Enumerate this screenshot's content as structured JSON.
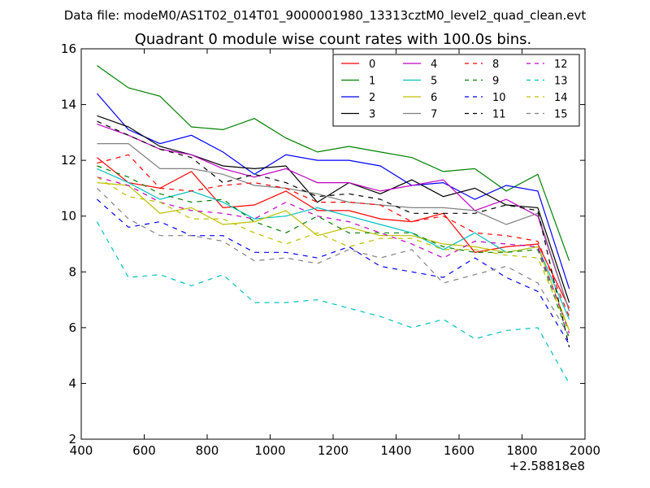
{
  "suptitle": "Data file: modeM0/AS1T02_014T01_9000001980_13313cztM0_level2_quad_clean.evt",
  "chart_data": {
    "type": "line",
    "title": "Quadrant 0 module wise count rates with 100.0s bins.",
    "xlabel": "",
    "ylabel": "",
    "x_offset_label": "+2.58818e8",
    "xlim": [
      400,
      2000
    ],
    "ylim": [
      2,
      16
    ],
    "xticks": [
      400,
      600,
      800,
      1000,
      1200,
      1400,
      1600,
      1800,
      2000
    ],
    "yticks": [
      2,
      4,
      6,
      8,
      10,
      12,
      14,
      16
    ],
    "grid": false,
    "legend_position": "top-right",
    "legend_columns": 4,
    "x": [
      450,
      550,
      650,
      750,
      850,
      950,
      1050,
      1150,
      1250,
      1350,
      1450,
      1550,
      1650,
      1750,
      1850,
      1950
    ],
    "series": [
      {
        "name": "0",
        "color": "#ff0000",
        "dashed": false,
        "values": [
          12.1,
          11.2,
          11.0,
          11.6,
          10.3,
          10.4,
          10.9,
          10.2,
          10.2,
          9.9,
          9.8,
          10.1,
          8.7,
          8.9,
          9.0,
          6.7
        ]
      },
      {
        "name": "1",
        "color": "#008000",
        "dashed": false,
        "values": [
          15.4,
          14.6,
          14.3,
          13.2,
          13.1,
          13.5,
          12.8,
          12.3,
          12.5,
          12.3,
          12.1,
          11.6,
          11.7,
          10.9,
          11.5,
          8.4
        ]
      },
      {
        "name": "2",
        "color": "#0000ff",
        "dashed": false,
        "values": [
          14.4,
          13.1,
          12.6,
          12.9,
          12.3,
          11.5,
          12.2,
          12.0,
          12.0,
          11.8,
          11.1,
          11.2,
          10.6,
          11.1,
          10.9,
          7.4
        ]
      },
      {
        "name": "3",
        "color": "#000000",
        "dashed": false,
        "values": [
          13.6,
          13.2,
          12.5,
          12.2,
          11.8,
          11.7,
          11.8,
          10.5,
          11.2,
          10.8,
          11.3,
          10.7,
          11.0,
          10.4,
          10.3,
          6.9
        ]
      },
      {
        "name": "4",
        "color": "#bf00bf",
        "dashed": false,
        "values": [
          13.3,
          12.9,
          12.4,
          12.2,
          11.7,
          11.4,
          11.7,
          11.2,
          11.2,
          10.9,
          11.1,
          11.3,
          10.2,
          10.6,
          10.0,
          6.6
        ]
      },
      {
        "name": "5",
        "color": "#00bfbf",
        "dashed": false,
        "values": [
          11.7,
          11.2,
          10.6,
          10.9,
          10.5,
          9.9,
          10.0,
          10.3,
          10.0,
          9.7,
          9.4,
          8.8,
          9.4,
          8.7,
          8.9,
          6.3
        ]
      },
      {
        "name": "6",
        "color": "#bfbf00",
        "dashed": false,
        "values": [
          11.2,
          11.1,
          10.1,
          10.3,
          9.7,
          9.8,
          10.2,
          9.3,
          9.6,
          9.3,
          9.3,
          9.0,
          8.9,
          8.7,
          8.9,
          5.9
        ]
      },
      {
        "name": "7",
        "color": "#808080",
        "dashed": false,
        "values": [
          12.6,
          12.6,
          11.7,
          11.7,
          11.5,
          11.1,
          11.0,
          10.8,
          10.5,
          10.4,
          10.3,
          10.3,
          10.2,
          9.7,
          10.1,
          6.6
        ]
      },
      {
        "name": "8",
        "color": "#ff0000",
        "dashed": true,
        "values": [
          11.9,
          12.2,
          11.0,
          10.9,
          11.1,
          11.2,
          11.0,
          10.5,
          10.5,
          10.4,
          9.8,
          10.0,
          9.4,
          9.3,
          9.1,
          6.4
        ]
      },
      {
        "name": "9",
        "color": "#008000",
        "dashed": true,
        "values": [
          11.8,
          11.4,
          10.8,
          10.5,
          10.6,
          9.8,
          9.4,
          10.0,
          9.4,
          9.4,
          9.4,
          8.9,
          8.7,
          8.7,
          8.8,
          5.6
        ]
      },
      {
        "name": "10",
        "color": "#0000ff",
        "dashed": true,
        "values": [
          10.6,
          9.6,
          9.8,
          9.3,
          9.3,
          8.7,
          8.7,
          8.5,
          8.9,
          8.2,
          8.0,
          7.8,
          8.5,
          7.8,
          7.3,
          5.4
        ]
      },
      {
        "name": "11",
        "color": "#000000",
        "dashed": true,
        "values": [
          13.4,
          12.9,
          12.4,
          12.1,
          11.2,
          11.5,
          11.2,
          10.7,
          10.8,
          10.6,
          10.1,
          10.1,
          10.1,
          10.4,
          10.2,
          5.3
        ]
      },
      {
        "name": "12",
        "color": "#bf00bf",
        "dashed": true,
        "values": [
          11.4,
          11.1,
          10.5,
          10.2,
          10.1,
          9.9,
          10.5,
          10.0,
          9.8,
          9.4,
          9.0,
          8.5,
          9.1,
          9.0,
          8.9,
          5.8
        ]
      },
      {
        "name": "13",
        "color": "#00bfbf",
        "dashed": true,
        "values": [
          9.8,
          7.8,
          7.9,
          7.5,
          7.9,
          6.9,
          6.9,
          7.0,
          6.7,
          6.4,
          6.0,
          6.3,
          5.6,
          5.9,
          6.0,
          4.0
        ]
      },
      {
        "name": "14",
        "color": "#bfbf00",
        "dashed": true,
        "values": [
          11.4,
          10.7,
          10.5,
          9.9,
          9.9,
          9.4,
          9.0,
          9.4,
          8.9,
          9.2,
          9.2,
          8.8,
          8.8,
          8.6,
          8.5,
          5.9
        ]
      },
      {
        "name": "15",
        "color": "#808080",
        "dashed": true,
        "values": [
          11.0,
          9.9,
          9.3,
          9.3,
          9.1,
          8.4,
          8.5,
          8.3,
          8.8,
          8.5,
          8.8,
          7.6,
          7.9,
          8.2,
          7.6,
          5.7
        ]
      }
    ]
  }
}
